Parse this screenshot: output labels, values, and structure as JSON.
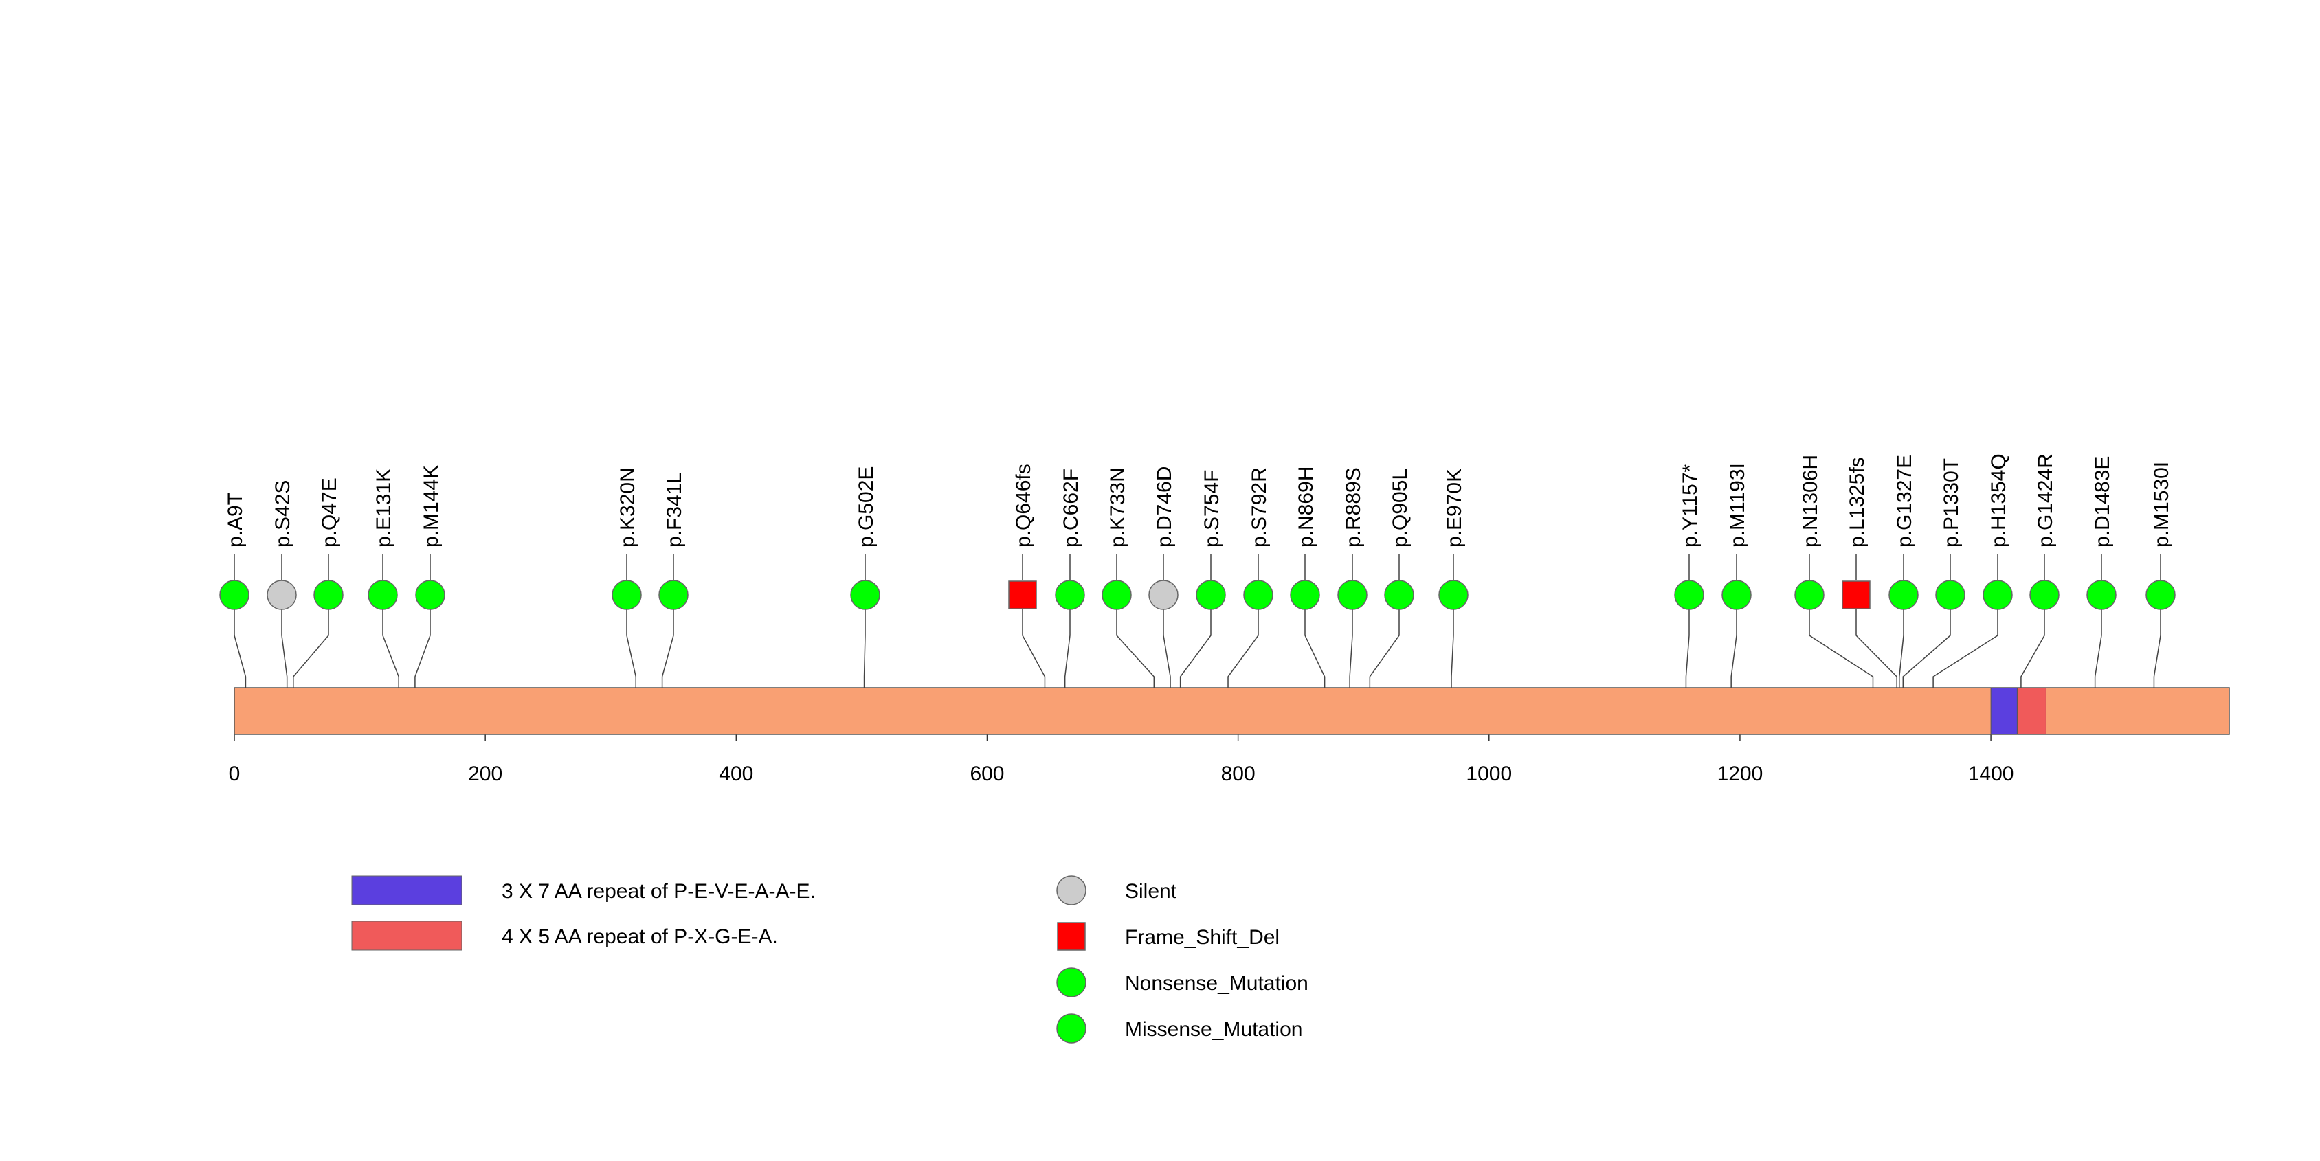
{
  "chart_data": {
    "type": "lollipop",
    "protein_length": 1590,
    "x_ticks": [
      0,
      200,
      400,
      600,
      800,
      1000,
      1200,
      1400
    ],
    "domains": [
      {
        "name": "3 X 7 AA repeat of P-E-V-E-A-A-E.",
        "start": 1400,
        "end": 1421,
        "color": "#5b3fdf"
      },
      {
        "name": "4 X 5 AA repeat of P-X-G-E-A.",
        "start": 1421,
        "end": 1444,
        "color": "#f05a5a"
      }
    ],
    "mutations": [
      {
        "label": "p.A9T",
        "pos": 9,
        "type": "Missense_Mutation"
      },
      {
        "label": "p.S42S",
        "pos": 42,
        "type": "Silent"
      },
      {
        "label": "p.Q47E",
        "pos": 47,
        "type": "Missense_Mutation"
      },
      {
        "label": "p.E131K",
        "pos": 131,
        "type": "Missense_Mutation"
      },
      {
        "label": "p.M144K",
        "pos": 144,
        "type": "Missense_Mutation"
      },
      {
        "label": "p.K320N",
        "pos": 320,
        "type": "Missense_Mutation"
      },
      {
        "label": "p.F341L",
        "pos": 341,
        "type": "Missense_Mutation"
      },
      {
        "label": "p.G502E",
        "pos": 502,
        "type": "Missense_Mutation"
      },
      {
        "label": "p.Q646fs",
        "pos": 646,
        "type": "Frame_Shift_Del"
      },
      {
        "label": "p.C662F",
        "pos": 662,
        "type": "Missense_Mutation"
      },
      {
        "label": "p.K733N",
        "pos": 733,
        "type": "Missense_Mutation"
      },
      {
        "label": "p.D746D",
        "pos": 746,
        "type": "Silent"
      },
      {
        "label": "p.S754F",
        "pos": 754,
        "type": "Missense_Mutation"
      },
      {
        "label": "p.S792R",
        "pos": 792,
        "type": "Missense_Mutation"
      },
      {
        "label": "p.N869H",
        "pos": 869,
        "type": "Missense_Mutation"
      },
      {
        "label": "p.R889S",
        "pos": 889,
        "type": "Missense_Mutation"
      },
      {
        "label": "p.Q905L",
        "pos": 905,
        "type": "Missense_Mutation"
      },
      {
        "label": "p.E970K",
        "pos": 970,
        "type": "Missense_Mutation"
      },
      {
        "label": "p.Y1157*",
        "pos": 1157,
        "type": "Nonsense_Mutation"
      },
      {
        "label": "p.M1193I",
        "pos": 1193,
        "type": "Missense_Mutation"
      },
      {
        "label": "p.N1306H",
        "pos": 1306,
        "type": "Missense_Mutation"
      },
      {
        "label": "p.L1325fs",
        "pos": 1325,
        "type": "Frame_Shift_Del"
      },
      {
        "label": "p.G1327E",
        "pos": 1327,
        "type": "Missense_Mutation"
      },
      {
        "label": "p.P1330T",
        "pos": 1330,
        "type": "Missense_Mutation"
      },
      {
        "label": "p.H1354Q",
        "pos": 1354,
        "type": "Missense_Mutation"
      },
      {
        "label": "p.G1424R",
        "pos": 1424,
        "type": "Missense_Mutation"
      },
      {
        "label": "p.D1483E",
        "pos": 1483,
        "type": "Missense_Mutation"
      },
      {
        "label": "p.M1530I",
        "pos": 1530,
        "type": "Missense_Mutation"
      }
    ],
    "mutation_types": [
      {
        "name": "Silent",
        "shape": "circle",
        "color": "#cccccc"
      },
      {
        "name": "Frame_Shift_Del",
        "shape": "square",
        "color": "#ff0000"
      },
      {
        "name": "Nonsense_Mutation",
        "shape": "circle",
        "color": "#00ff00"
      },
      {
        "name": "Missense_Mutation",
        "shape": "circle",
        "color": "#00ff00"
      }
    ],
    "protein_color": "#f9a073"
  }
}
